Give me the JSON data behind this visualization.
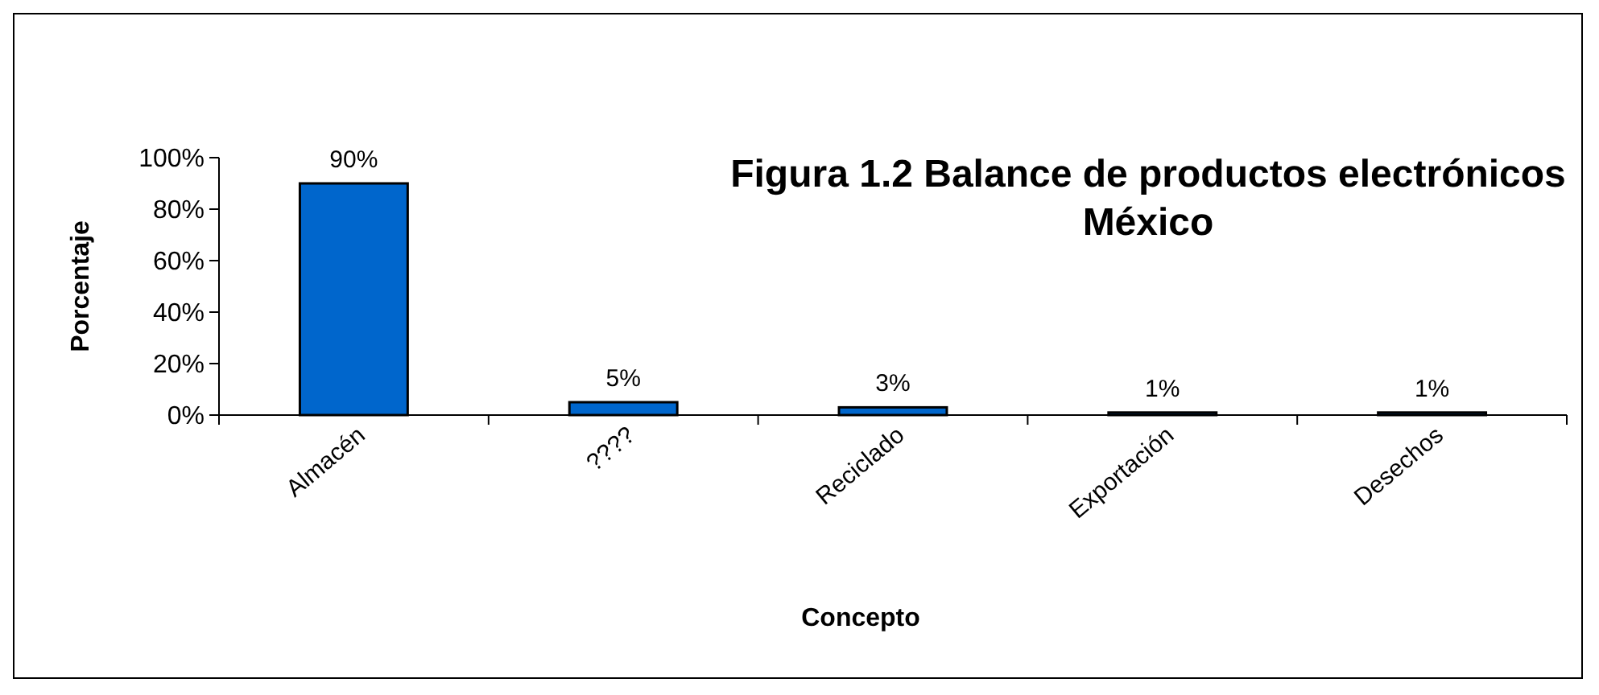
{
  "chart_data": {
    "type": "bar",
    "title": "Figura 1.2 Balance de productos electrónicos México",
    "xlabel": "Concepto",
    "ylabel": "Porcentaje",
    "categories": [
      "Almacén",
      "????",
      "Reciclado",
      "Exportación",
      "Desechos"
    ],
    "values": [
      90,
      5,
      3,
      1,
      1
    ],
    "color": "#0066cc",
    "value_labels": [
      "90%",
      "5%",
      "3%",
      "1%",
      "1%"
    ],
    "ylim": [
      0,
      100
    ],
    "yticks": [
      {
        "value": 0,
        "label": "0%"
      },
      {
        "value": 20,
        "label": "20%"
      },
      {
        "value": 40,
        "label": "40%"
      },
      {
        "value": 60,
        "label": "60%"
      },
      {
        "value": 80,
        "label": "80%"
      },
      {
        "value": 100,
        "label": "100%"
      }
    ],
    "grid": false
  }
}
